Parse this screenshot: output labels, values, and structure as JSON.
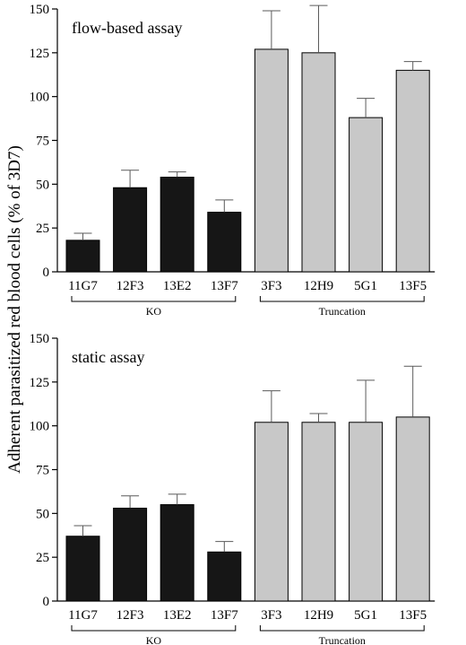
{
  "ylabel": "Adherent parasitized red blood cells (% of 3D7)",
  "colors": {
    "ko": "#161616",
    "truncation": "#c8c8c8",
    "axis": "#000000",
    "errorbar": "#5a5a5a"
  },
  "chart_data": [
    {
      "type": "bar",
      "title": "flow-based assay",
      "ylim": [
        0,
        150
      ],
      "yticks": [
        0,
        25,
        50,
        75,
        100,
        125,
        150
      ],
      "categories": [
        "11G7",
        "12F3",
        "13E2",
        "13F7",
        "3F3",
        "12H9",
        "5G1",
        "13F5"
      ],
      "values": [
        18,
        48,
        54,
        34,
        127,
        125,
        88,
        115
      ],
      "errors": [
        4,
        10,
        3,
        7,
        22,
        27,
        11,
        5
      ],
      "groups": [
        {
          "label": "KO",
          "from": 0,
          "to": 3,
          "color_key": "ko"
        },
        {
          "label": "Truncation",
          "from": 4,
          "to": 7,
          "color_key": "truncation"
        }
      ]
    },
    {
      "type": "bar",
      "title": "static assay",
      "ylim": [
        0,
        150
      ],
      "yticks": [
        0,
        25,
        50,
        75,
        100,
        125,
        150
      ],
      "categories": [
        "11G7",
        "12F3",
        "13E2",
        "13F7",
        "3F3",
        "12H9",
        "5G1",
        "13F5"
      ],
      "values": [
        37,
        53,
        55,
        28,
        102,
        102,
        102,
        105
      ],
      "errors": [
        6,
        7,
        6,
        6,
        18,
        5,
        24,
        29
      ],
      "groups": [
        {
          "label": "KO",
          "from": 0,
          "to": 3,
          "color_key": "ko"
        },
        {
          "label": "Truncation",
          "from": 4,
          "to": 7,
          "color_key": "truncation"
        }
      ]
    }
  ]
}
